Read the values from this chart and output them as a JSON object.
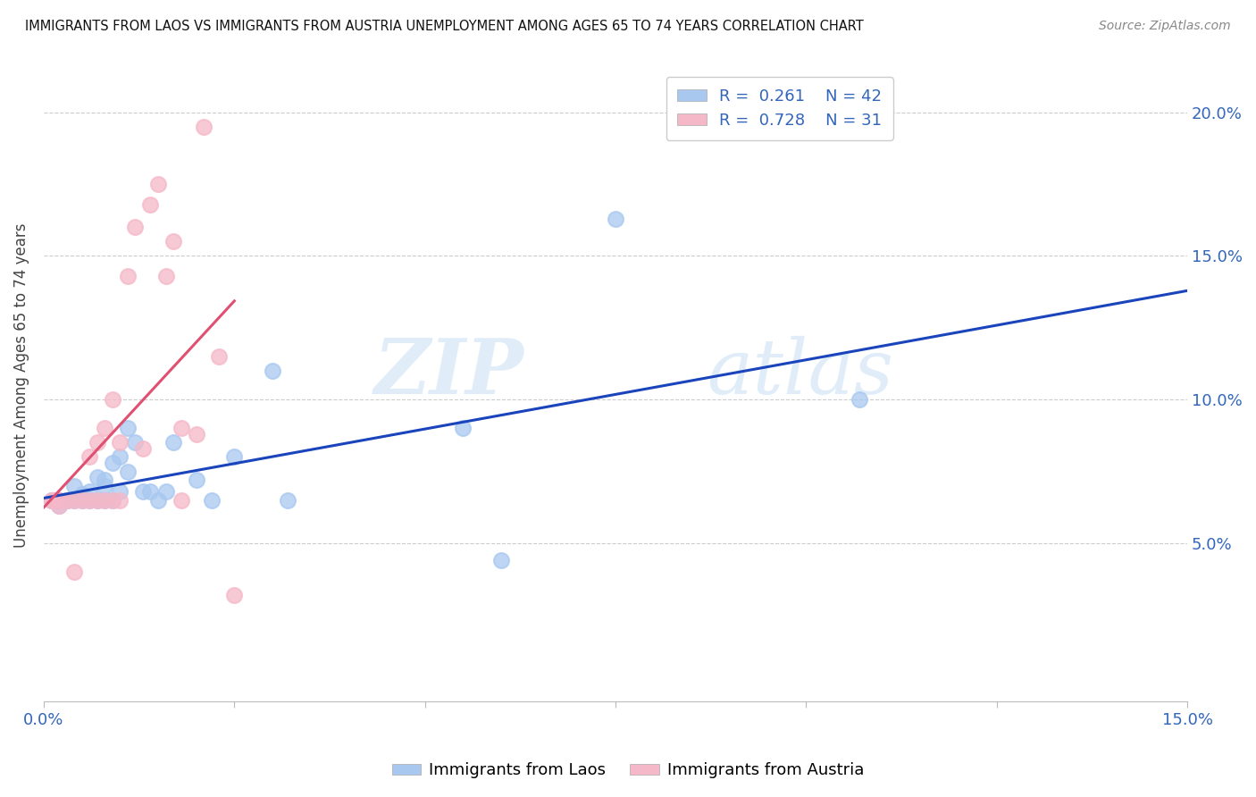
{
  "title": "IMMIGRANTS FROM LAOS VS IMMIGRANTS FROM AUSTRIA UNEMPLOYMENT AMONG AGES 65 TO 74 YEARS CORRELATION CHART",
  "source": "Source: ZipAtlas.com",
  "ylabel": "Unemployment Among Ages 65 to 74 years",
  "xlim": [
    0.0,
    0.15
  ],
  "ylim": [
    -0.005,
    0.215
  ],
  "xticks": [
    0.0,
    0.025,
    0.05,
    0.075,
    0.1,
    0.125,
    0.15
  ],
  "xtick_labels": [
    "0.0%",
    "",
    "",
    "",
    "",
    "",
    "15.0%"
  ],
  "yticks": [
    0.05,
    0.1,
    0.15,
    0.2
  ],
  "ytick_labels": [
    "5.0%",
    "10.0%",
    "15.0%",
    "20.0%"
  ],
  "laos_color": "#a8c8f0",
  "austria_color": "#f5b8c8",
  "laos_line_color": "#1a44bb",
  "austria_line_color": "#e05070",
  "laos_R": 0.261,
  "laos_N": 42,
  "austria_R": 0.728,
  "austria_N": 31,
  "watermark_zip": "ZIP",
  "watermark_atlas": "atlas",
  "laos_x": [
    0.001,
    0.001,
    0.001,
    0.002,
    0.002,
    0.002,
    0.002,
    0.003,
    0.003,
    0.004,
    0.004,
    0.005,
    0.005,
    0.005,
    0.006,
    0.006,
    0.007,
    0.007,
    0.008,
    0.008,
    0.008,
    0.009,
    0.009,
    0.01,
    0.01,
    0.011,
    0.011,
    0.012,
    0.013,
    0.014,
    0.015,
    0.016,
    0.017,
    0.02,
    0.022,
    0.025,
    0.03,
    0.032,
    0.055,
    0.06,
    0.075,
    0.107
  ],
  "laos_y": [
    0.065,
    0.065,
    0.065,
    0.063,
    0.065,
    0.065,
    0.065,
    0.065,
    0.065,
    0.065,
    0.07,
    0.065,
    0.066,
    0.067,
    0.065,
    0.068,
    0.065,
    0.073,
    0.065,
    0.07,
    0.072,
    0.065,
    0.078,
    0.068,
    0.08,
    0.075,
    0.09,
    0.085,
    0.068,
    0.068,
    0.065,
    0.068,
    0.085,
    0.072,
    0.065,
    0.08,
    0.11,
    0.065,
    0.09,
    0.044,
    0.163,
    0.1
  ],
  "austria_x": [
    0.001,
    0.001,
    0.002,
    0.002,
    0.003,
    0.004,
    0.004,
    0.005,
    0.006,
    0.006,
    0.007,
    0.007,
    0.008,
    0.008,
    0.009,
    0.009,
    0.01,
    0.01,
    0.011,
    0.012,
    0.013,
    0.014,
    0.015,
    0.016,
    0.017,
    0.018,
    0.018,
    0.02,
    0.021,
    0.023,
    0.025
  ],
  "austria_y": [
    0.065,
    0.065,
    0.063,
    0.065,
    0.065,
    0.04,
    0.065,
    0.065,
    0.065,
    0.08,
    0.065,
    0.085,
    0.065,
    0.09,
    0.065,
    0.1,
    0.065,
    0.085,
    0.143,
    0.16,
    0.083,
    0.168,
    0.175,
    0.143,
    0.155,
    0.065,
    0.09,
    0.088,
    0.195,
    0.115,
    0.032
  ]
}
